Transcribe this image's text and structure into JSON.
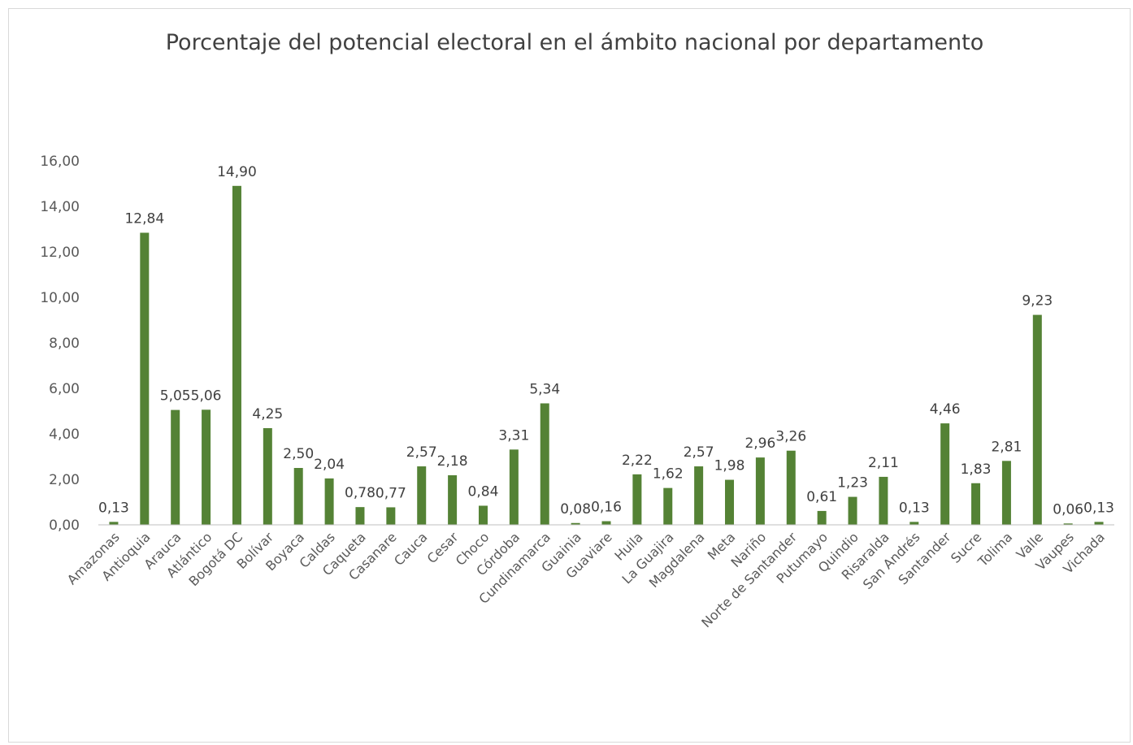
{
  "chart_data": {
    "type": "bar",
    "title": "Porcentaje del potencial electoral en el ámbito nacional por departamento",
    "categories": [
      "Amazonas",
      "Antioquia",
      "Arauca",
      "Atlántico",
      "Bogotá DC",
      "Bolívar",
      "Boyaca",
      "Caldas",
      "Caqueta",
      "Casanare",
      "Cauca",
      "Cesar",
      "Choco",
      "Córdoba",
      "Cundinamarca",
      "Guainia",
      "Guaviare",
      "Huila",
      "La Guajira",
      "Magdalena",
      "Meta",
      "Nariño",
      "Norte de Santander",
      "Putumayo",
      "Quindio",
      "Risaralda",
      "San Andrés",
      "Santander",
      "Sucre",
      "Tolima",
      "Valle",
      "Vaupes",
      "Vichada"
    ],
    "values": [
      0.13,
      12.84,
      5.05,
      5.06,
      14.9,
      4.25,
      2.5,
      2.04,
      0.78,
      0.77,
      2.57,
      2.18,
      0.84,
      3.31,
      5.34,
      0.08,
      0.16,
      2.22,
      1.62,
      2.57,
      1.98,
      2.96,
      3.26,
      0.61,
      1.23,
      2.11,
      0.13,
      4.46,
      1.83,
      2.81,
      9.23,
      0.06,
      0.13
    ],
    "data_labels": [
      "0,13",
      "12,84",
      "5,05",
      "5,06",
      "14,90",
      "4,25",
      "2,50",
      "2,04",
      "0,78",
      "0,77",
      "2,57",
      "2,18",
      "0,84",
      "3,31",
      "5,34",
      "0,08",
      "0,16",
      "2,22",
      "1,62",
      "2,57",
      "1,98",
      "2,96",
      "3,26",
      "0,61",
      "1,23",
      "2,11",
      "0,13",
      "4,46",
      "1,83",
      "2,81",
      "9,23",
      "0,06",
      "0,13"
    ],
    "yticks": [
      "0,00",
      "2,00",
      "4,00",
      "6,00",
      "8,00",
      "10,00",
      "12,00",
      "14,00",
      "16,00"
    ],
    "ylim": [
      0,
      16
    ],
    "xlabel": "",
    "ylabel": "",
    "grid": false,
    "bar_color": "#548235"
  }
}
